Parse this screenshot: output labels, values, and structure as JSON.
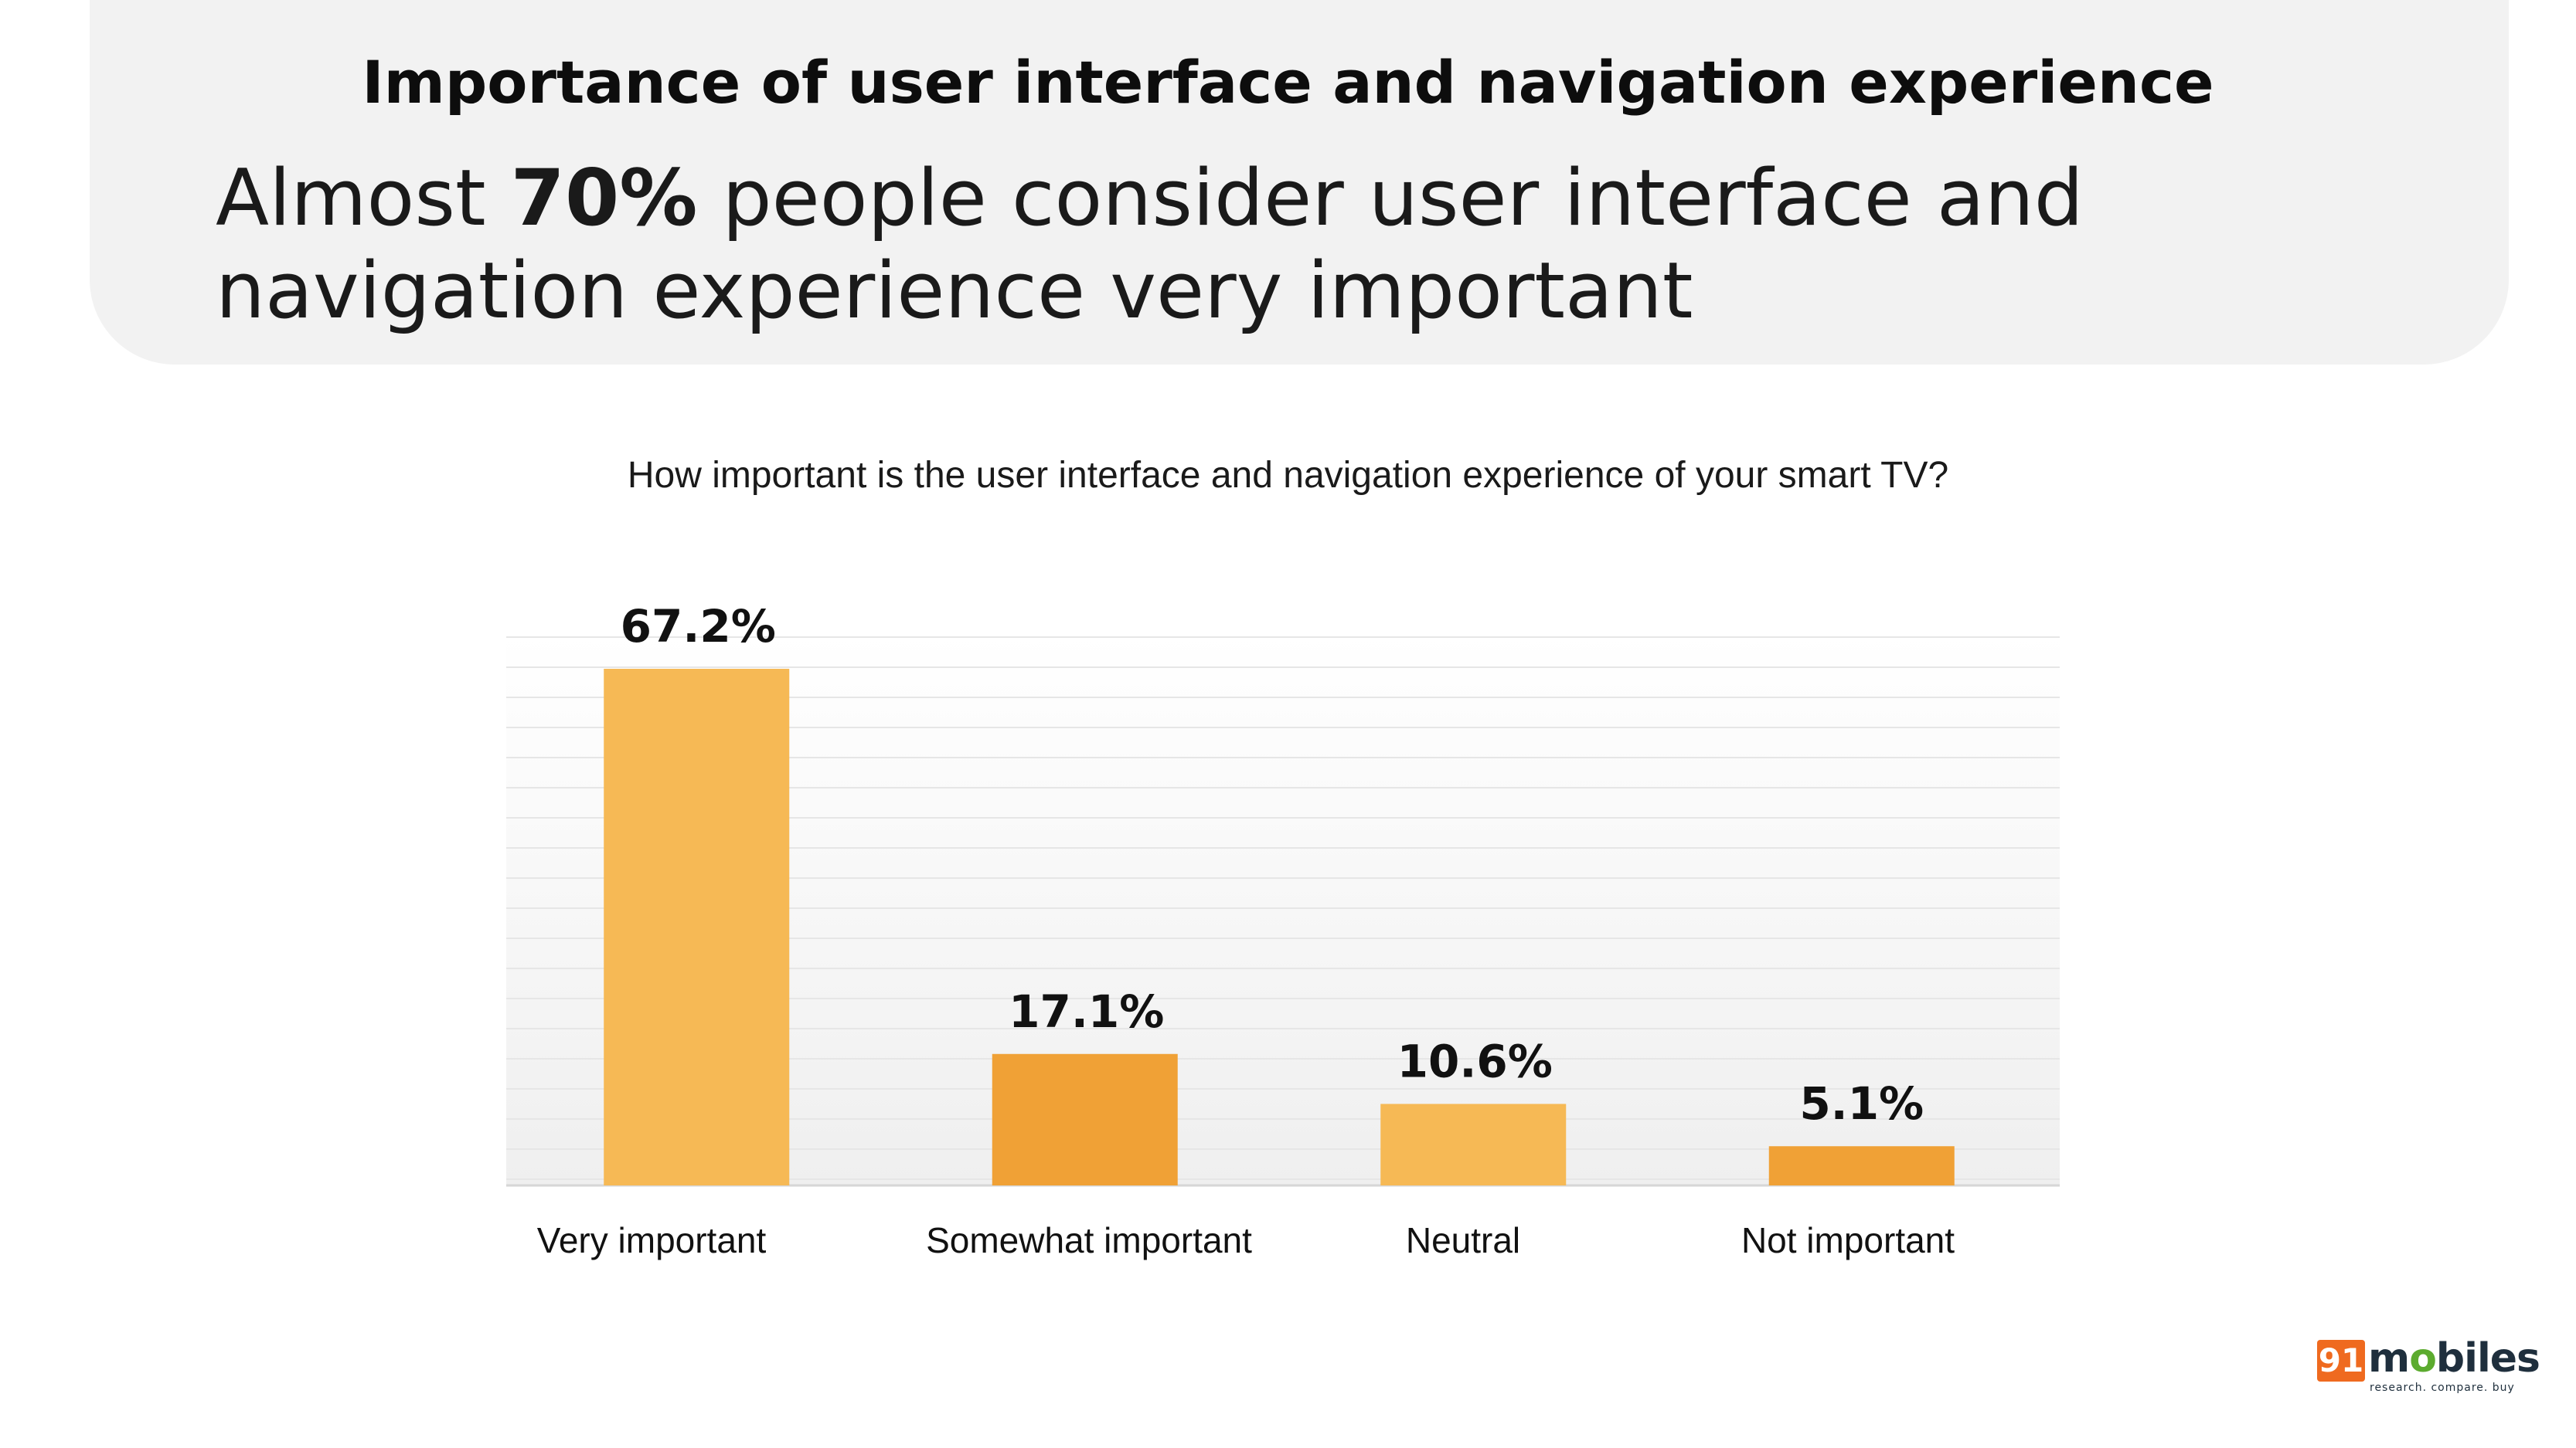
{
  "header": {
    "title": "Importance of user interface and navigation experience",
    "headline_prefix": "Almost ",
    "headline_bold": "70%",
    "headline_suffix": " people consider user interface and navigation experience very important"
  },
  "chart_data": {
    "type": "bar",
    "title": "How important is the user interface and navigation experience of your smart TV?",
    "categories": [
      "Very important",
      "Somewhat important",
      "Neutral",
      "Not important"
    ],
    "values": [
      67.2,
      17.1,
      10.6,
      5.1
    ],
    "value_labels": [
      "67.2%",
      "17.1%",
      "10.6%",
      "5.1%"
    ],
    "bar_colors": [
      "#f6b955",
      "#f0a136",
      "#f6b955",
      "#f0a136"
    ],
    "xlabel": "",
    "ylabel": "",
    "ylim": [
      0,
      67.2
    ],
    "grid": true,
    "legend": "none"
  },
  "logo": {
    "number": "91",
    "word_start": "m",
    "word_dot": "o",
    "word_end": "biles",
    "tagline": "research. compare. buy"
  },
  "colors": {
    "panel": "#f2f2f2",
    "bar_light": "#f6b955",
    "bar_dark": "#f0a136",
    "logo_orange": "#ef6a1f",
    "logo_green": "#5cab2f"
  }
}
